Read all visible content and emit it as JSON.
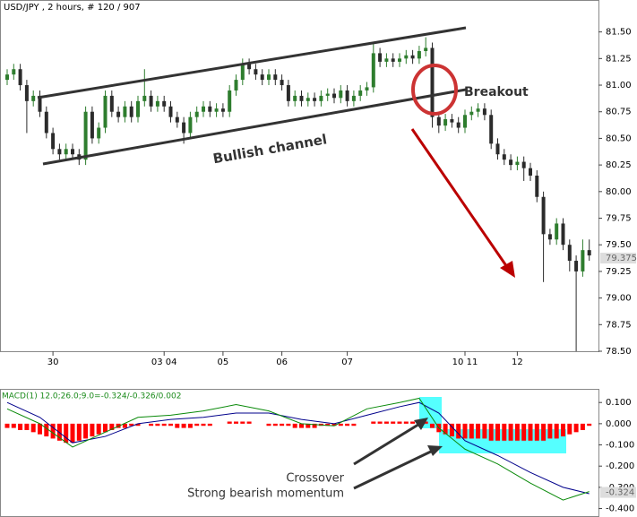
{
  "chart_data": [
    {
      "type": "candlestick",
      "title": "USD/JPY , 2 hours, # 120 / 907",
      "categories": [
        null,
        null,
        null,
        null,
        null,
        null,
        null,
        "30",
        null,
        null,
        null,
        null,
        null,
        null,
        null,
        null,
        null,
        null,
        null,
        null,
        null,
        null,
        null,
        null,
        "03 04",
        null,
        null,
        null,
        null,
        null,
        null,
        null,
        null,
        "05",
        null,
        null,
        null,
        null,
        null,
        null,
        null,
        null,
        "06",
        null,
        null,
        null,
        null,
        null,
        null,
        null,
        null,
        null,
        "07",
        null,
        null,
        null,
        null,
        null,
        null,
        null,
        null,
        null,
        null,
        null,
        null,
        null,
        null,
        null,
        null,
        null,
        "10 11",
        null,
        null,
        null,
        null,
        null,
        null,
        null,
        "12",
        null,
        null,
        null,
        null,
        null,
        null,
        null,
        null,
        null,
        null,
        null
      ],
      "open": [
        81.05,
        81.1,
        81.15,
        81.0,
        80.85,
        80.9,
        80.75,
        80.55,
        80.4,
        80.35,
        80.4,
        80.35,
        80.3,
        80.75,
        80.5,
        80.6,
        80.9,
        80.75,
        80.7,
        80.8,
        80.7,
        80.85,
        80.9,
        80.8,
        80.85,
        80.8,
        80.7,
        80.65,
        80.55,
        80.7,
        80.75,
        80.8,
        80.75,
        80.78,
        80.75,
        80.95,
        81.05,
        81.2,
        81.15,
        81.1,
        81.05,
        81.1,
        81.05,
        81.0,
        80.85,
        80.9,
        80.85,
        80.88,
        80.85,
        80.9,
        80.92,
        80.88,
        80.95,
        80.85,
        80.9,
        80.95,
        80.98,
        81.3,
        81.22,
        81.25,
        81.22,
        81.25,
        81.28,
        81.25,
        81.32,
        81.35,
        80.7,
        80.62,
        80.68,
        80.65,
        80.6,
        80.72,
        80.75,
        80.78,
        80.72,
        80.45,
        80.35,
        80.3,
        80.25,
        80.28,
        80.22,
        80.15,
        79.95,
        79.6,
        79.55,
        79.7,
        79.5,
        79.35,
        79.25,
        79.45
      ],
      "high": [
        81.15,
        81.2,
        81.2,
        81.05,
        80.95,
        80.95,
        80.8,
        80.6,
        80.45,
        80.45,
        80.45,
        80.4,
        80.8,
        80.8,
        80.65,
        80.95,
        80.95,
        80.8,
        80.85,
        80.85,
        80.9,
        81.15,
        80.95,
        80.9,
        80.9,
        80.85,
        80.75,
        80.7,
        80.75,
        80.8,
        80.85,
        80.85,
        80.83,
        80.83,
        81.0,
        81.1,
        81.25,
        81.25,
        81.2,
        81.15,
        81.15,
        81.15,
        81.1,
        81.05,
        80.95,
        80.95,
        80.93,
        80.93,
        80.95,
        80.97,
        80.97,
        81.0,
        81.0,
        80.95,
        81.0,
        81.03,
        81.4,
        81.35,
        81.3,
        81.3,
        81.3,
        81.33,
        81.33,
        81.37,
        81.45,
        81.4,
        80.75,
        80.73,
        80.73,
        80.7,
        80.77,
        80.8,
        80.83,
        80.83,
        80.77,
        80.5,
        80.4,
        80.35,
        80.33,
        80.33,
        80.27,
        80.2,
        80.0,
        79.65,
        79.75,
        79.75,
        79.55,
        79.4,
        79.55,
        79.55
      ],
      "low": [
        81.0,
        81.05,
        80.95,
        80.55,
        80.8,
        80.7,
        80.5,
        80.35,
        80.3,
        80.3,
        80.3,
        80.25,
        80.25,
        80.45,
        80.45,
        80.55,
        80.7,
        80.65,
        80.65,
        80.65,
        80.65,
        80.8,
        80.75,
        80.75,
        80.75,
        80.65,
        80.6,
        80.45,
        80.5,
        80.65,
        80.7,
        80.7,
        80.7,
        80.7,
        80.7,
        80.9,
        81.0,
        81.1,
        81.05,
        81.0,
        81.0,
        81.0,
        80.95,
        80.8,
        80.8,
        80.8,
        80.8,
        80.8,
        80.8,
        80.85,
        80.83,
        80.83,
        80.8,
        80.8,
        80.85,
        80.9,
        80.93,
        81.17,
        81.17,
        81.17,
        81.17,
        81.2,
        81.2,
        81.2,
        81.27,
        80.6,
        80.55,
        80.57,
        80.6,
        80.55,
        80.55,
        80.67,
        80.7,
        80.67,
        80.4,
        80.3,
        80.25,
        80.2,
        80.2,
        80.1,
        80.1,
        79.9,
        79.15,
        79.5,
        79.5,
        79.45,
        79.25,
        78.5,
        79.2,
        79.35
      ],
      "close": [
        81.1,
        81.15,
        81.0,
        80.85,
        80.9,
        80.75,
        80.55,
        80.4,
        80.35,
        80.4,
        80.35,
        80.3,
        80.75,
        80.5,
        80.6,
        80.9,
        80.75,
        80.7,
        80.8,
        80.7,
        80.85,
        80.9,
        80.8,
        80.85,
        80.8,
        80.7,
        80.65,
        80.55,
        80.7,
        80.75,
        80.8,
        80.75,
        80.78,
        80.75,
        80.95,
        81.05,
        81.2,
        81.15,
        81.1,
        81.05,
        81.1,
        81.05,
        81.0,
        80.85,
        80.9,
        80.85,
        80.88,
        80.85,
        80.9,
        80.92,
        80.88,
        80.95,
        80.85,
        80.9,
        80.95,
        80.98,
        81.3,
        81.22,
        81.25,
        81.22,
        81.25,
        81.28,
        81.25,
        81.32,
        81.35,
        80.7,
        80.62,
        80.68,
        80.65,
        80.6,
        80.72,
        80.75,
        80.78,
        80.72,
        80.45,
        80.35,
        80.3,
        80.25,
        80.28,
        80.22,
        80.15,
        79.95,
        79.6,
        79.55,
        79.7,
        79.5,
        79.35,
        79.25,
        79.45,
        79.4
      ],
      "up_color": "#2e7d2e",
      "down_color": "#2b2b2b",
      "ylim": [
        78.5,
        81.8
      ],
      "yticks": [
        {
          "value": 78.5,
          "label": "78.50"
        },
        78.75,
        {
          "value": 79.0,
          "label": "79.00"
        },
        79.25,
        {
          "value": 79.5,
          "label": "79.50"
        },
        79.75,
        {
          "value": 80.0,
          "label": "80.00"
        },
        80.25,
        {
          "value": 80.5,
          "label": "80.50"
        },
        80.75,
        {
          "value": 81.0,
          "label": "81.00"
        },
        81.25,
        {
          "value": 81.5,
          "label": "81.50"
        }
      ],
      "current_price": 79.375,
      "annotations": [
        "Bullish channel",
        "Breakout"
      ]
    },
    {
      "type": "macd",
      "title": "MACD(1) 12.0;26.0;9.0=-0.324/-0.326/0.002",
      "histogram": {
        "color": "#ff0000",
        "values": [
          -0.02,
          -0.02,
          -0.03,
          -0.03,
          -0.04,
          -0.05,
          -0.06,
          -0.07,
          -0.08,
          -0.09,
          -0.09,
          -0.08,
          -0.07,
          -0.06,
          -0.05,
          -0.04,
          -0.03,
          -0.02,
          -0.02,
          -0.01,
          -0.01,
          0.0,
          -0.01,
          -0.01,
          -0.01,
          -0.01,
          -0.02,
          -0.02,
          -0.02,
          -0.01,
          -0.01,
          -0.01,
          0.0,
          0.0,
          0.01,
          0.01,
          0.01,
          0.01,
          0.0,
          0.0,
          -0.01,
          -0.01,
          -0.01,
          -0.01,
          -0.02,
          -0.02,
          -0.02,
          -0.02,
          -0.01,
          -0.01,
          -0.01,
          -0.01,
          -0.01,
          -0.01,
          0.0,
          0.0,
          0.01,
          0.01,
          0.01,
          0.01,
          0.01,
          0.01,
          0.01,
          0.01,
          0.01,
          -0.02,
          -0.04,
          -0.05,
          -0.06,
          -0.07,
          -0.07,
          -0.07,
          -0.07,
          -0.07,
          -0.08,
          -0.08,
          -0.08,
          -0.08,
          -0.08,
          -0.08,
          -0.08,
          -0.08,
          -0.08,
          -0.07,
          -0.07,
          -0.06,
          -0.05,
          -0.04,
          -0.03,
          -0.01
        ]
      },
      "series": [
        {
          "color": "#00008b",
          "x": [
            0,
            5,
            10,
            15,
            20,
            25,
            30,
            35,
            40,
            45,
            50,
            55,
            60,
            63,
            66,
            70,
            75,
            80,
            85,
            89
          ],
          "values": [
            0.1,
            0.03,
            -0.09,
            -0.06,
            0.0,
            0.02,
            0.03,
            0.05,
            0.05,
            0.02,
            0.0,
            0.04,
            0.08,
            0.1,
            0.05,
            -0.08,
            -0.15,
            -0.23,
            -0.3,
            -0.33
          ]
        },
        {
          "color": "#0a8a0a",
          "x": [
            0,
            5,
            10,
            15,
            20,
            25,
            30,
            35,
            40,
            45,
            50,
            55,
            60,
            63,
            66,
            70,
            75,
            80,
            85,
            89
          ],
          "values": [
            0.07,
            0.0,
            -0.11,
            -0.04,
            0.03,
            0.04,
            0.06,
            0.09,
            0.06,
            0.0,
            -0.01,
            0.07,
            0.1,
            0.12,
            -0.02,
            -0.12,
            -0.19,
            -0.28,
            -0.36,
            -0.32
          ]
        }
      ],
      "ylim": [
        -0.44,
        0.16
      ],
      "yticks": [
        {
          "value": 0.1,
          "label": "0.100"
        },
        {
          "value": 0,
          "label": "0.000"
        },
        {
          "value": -0.1,
          "label": "-0.100"
        },
        {
          "value": -0.2,
          "label": "-0.200"
        },
        {
          "value": -0.3,
          "label": "-0.300"
        },
        {
          "value": -0.4,
          "label": "-0.400"
        }
      ],
      "current_value": -0.324,
      "annotations": [
        "Crossover",
        "Strong bearish momentum"
      ]
    }
  ]
}
